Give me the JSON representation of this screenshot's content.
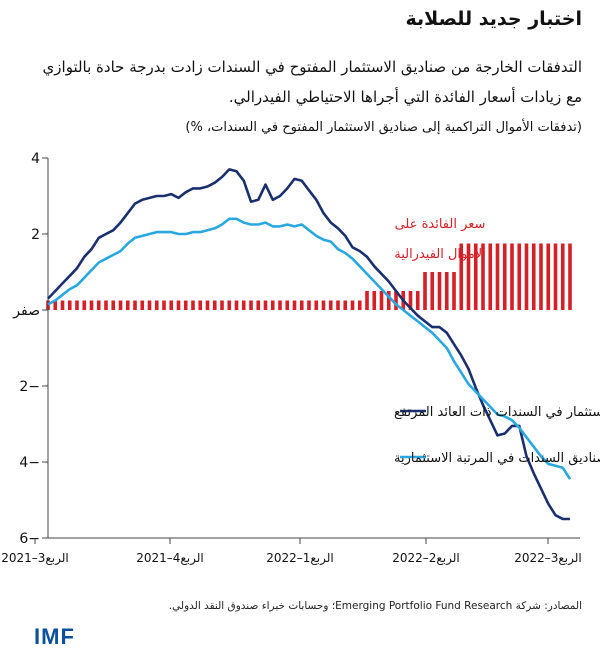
{
  "title": "اختبار جديد للصلابة",
  "subtitle": "التدفقات الخارجة من صناديق الاستثمار المفتوح في السندات زادت بدرجة حادة بالتوازي مع زيادات أسعار الفائدة التي أجراها الاحتياطي الفيدرالي.",
  "unit": "(تدفقات الأموال التراكمية إلى صناديق الاستثمار المفتوح في السندات، %)",
  "source": "المصادر: شركة Emerging Portfolio Fund Research؛ وحسابات خبراء صندوق النقد الدولي.",
  "logo": "IMF",
  "colors": {
    "high_yield": "#1a2f6e",
    "investment_grade": "#29a8e0",
    "fed_rate": "#d42027"
  },
  "chart_data": {
    "type": "line",
    "ylim": [
      -6,
      4
    ],
    "y_ticks": [
      {
        "value": 4,
        "label": "4"
      },
      {
        "value": 2,
        "label": "2"
      },
      {
        "value": 0,
        "label": "صفر"
      },
      {
        "value": -2,
        "label": "2−"
      },
      {
        "value": -4,
        "label": "4−"
      },
      {
        "value": -6,
        "label": "6−"
      }
    ],
    "x_ticks": [
      "الربع3–2021",
      "الربع4–2021",
      "الربع1–2022",
      "الربع2–2022",
      "الربع3–2022"
    ],
    "series": [
      {
        "name": "صناديق الاستثمار في السندات ذات العائد المرتفع",
        "values": [
          0.3,
          0.5,
          0.7,
          0.9,
          1.1,
          1.4,
          1.6,
          1.9,
          2.0,
          2.1,
          2.3,
          2.55,
          2.8,
          2.9,
          2.95,
          3.0,
          3.0,
          3.05,
          2.95,
          3.1,
          3.2,
          3.2,
          3.25,
          3.35,
          3.5,
          3.7,
          3.65,
          3.4,
          2.85,
          2.9,
          3.3,
          2.9,
          3.0,
          3.2,
          3.45,
          3.4,
          3.15,
          2.9,
          2.55,
          2.3,
          2.15,
          1.95,
          1.65,
          1.55,
          1.4,
          1.15,
          0.95,
          0.75,
          0.5,
          0.25,
          0.05,
          -0.15,
          -0.3,
          -0.45,
          -0.45,
          -0.6,
          -0.9,
          -1.2,
          -1.55,
          -2.05,
          -2.5,
          -2.9,
          -3.3,
          -3.25,
          -3.05,
          -3.05,
          -3.85,
          -4.3,
          -4.7,
          -5.1,
          -5.4,
          -5.5,
          -5.5
        ],
        "color": "high_yield"
      },
      {
        "name": "صناديق السندات في المرتبة الاستثمارية",
        "values": [
          0.15,
          0.25,
          0.4,
          0.55,
          0.65,
          0.85,
          1.05,
          1.25,
          1.35,
          1.45,
          1.55,
          1.75,
          1.9,
          1.95,
          2.0,
          2.05,
          2.05,
          2.05,
          2.0,
          2.0,
          2.05,
          2.05,
          2.1,
          2.15,
          2.25,
          2.4,
          2.4,
          2.3,
          2.25,
          2.25,
          2.3,
          2.2,
          2.2,
          2.25,
          2.2,
          2.25,
          2.1,
          1.95,
          1.85,
          1.8,
          1.6,
          1.5,
          1.35,
          1.15,
          0.95,
          0.75,
          0.55,
          0.35,
          0.15,
          0.0,
          -0.15,
          -0.3,
          -0.45,
          -0.6,
          -0.8,
          -1.0,
          -1.35,
          -1.65,
          -1.95,
          -2.15,
          -2.35,
          -2.55,
          -2.75,
          -2.8,
          -2.9,
          -3.1,
          -3.35,
          -3.6,
          -3.85,
          -4.05,
          -4.1,
          -4.15,
          -4.45
        ],
        "color": "investment_grade"
      }
    ],
    "fed_rate": {
      "name": "سعر الفائدة على الأموال الفيدرالية",
      "annotation_lines": [
        "سعر الفائدة على",
        "الأموال الفيدرالية"
      ],
      "values": [
        0.25,
        0.25,
        0.25,
        0.25,
        0.25,
        0.25,
        0.25,
        0.25,
        0.25,
        0.25,
        0.25,
        0.25,
        0.25,
        0.25,
        0.25,
        0.25,
        0.25,
        0.25,
        0.25,
        0.25,
        0.25,
        0.25,
        0.25,
        0.25,
        0.25,
        0.25,
        0.25,
        0.25,
        0.25,
        0.25,
        0.25,
        0.25,
        0.25,
        0.25,
        0.25,
        0.25,
        0.25,
        0.25,
        0.25,
        0.25,
        0.25,
        0.25,
        0.25,
        0.25,
        0.5,
        0.5,
        0.5,
        0.5,
        0.5,
        0.5,
        0.5,
        0.5,
        1.0,
        1.0,
        1.0,
        1.0,
        1.0,
        1.75,
        1.75,
        1.75,
        1.75,
        1.75,
        1.75,
        1.75,
        1.75,
        1.75,
        1.75,
        1.75,
        1.75,
        1.75,
        1.75,
        1.75,
        1.75
      ],
      "color": "fed_rate"
    }
  }
}
